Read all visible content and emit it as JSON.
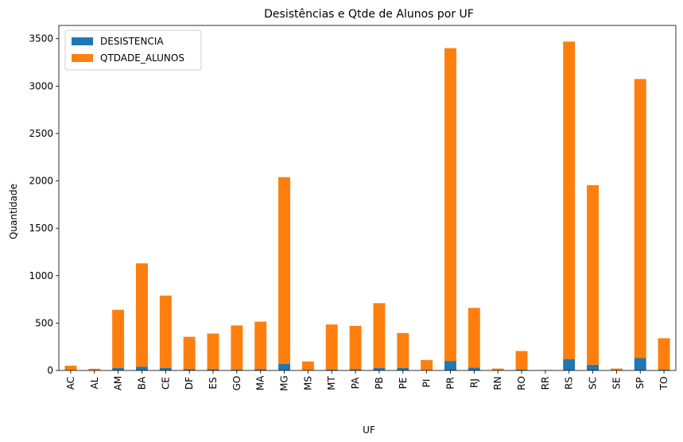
{
  "chart_data": {
    "type": "bar",
    "stacked": true,
    "title": "Desistências e Qtde de Alunos por UF",
    "xlabel": "UF",
    "ylabel": "Quantidade",
    "ylim": [
      0,
      3640
    ],
    "yticks": [
      0,
      500,
      1000,
      1500,
      2000,
      2500,
      3000,
      3500
    ],
    "grid": false,
    "legend_position": "top-left",
    "categories": [
      "AC",
      "AL",
      "AM",
      "BA",
      "CE",
      "DF",
      "ES",
      "GO",
      "MA",
      "MG",
      "MS",
      "MT",
      "PA",
      "PB",
      "PE",
      "PI",
      "PR",
      "RJ",
      "RN",
      "RO",
      "RR",
      "RS",
      "SC",
      "SE",
      "SP",
      "TO"
    ],
    "series": [
      {
        "name": "DESISTENCIA",
        "color": "#1f77b4",
        "values": [
          2,
          1,
          25,
          40,
          25,
          15,
          15,
          10,
          15,
          70,
          5,
          10,
          15,
          25,
          25,
          5,
          100,
          30,
          2,
          10,
          1,
          120,
          60,
          2,
          130,
          10
        ]
      },
      {
        "name": "QTDADE_ALUNOS",
        "color": "#ff7f0e",
        "values": [
          48,
          17,
          615,
          1090,
          765,
          340,
          375,
          465,
          500,
          1970,
          90,
          475,
          455,
          685,
          370,
          105,
          3300,
          630,
          18,
          195,
          4,
          3350,
          1895,
          18,
          2945,
          330
        ]
      }
    ]
  }
}
